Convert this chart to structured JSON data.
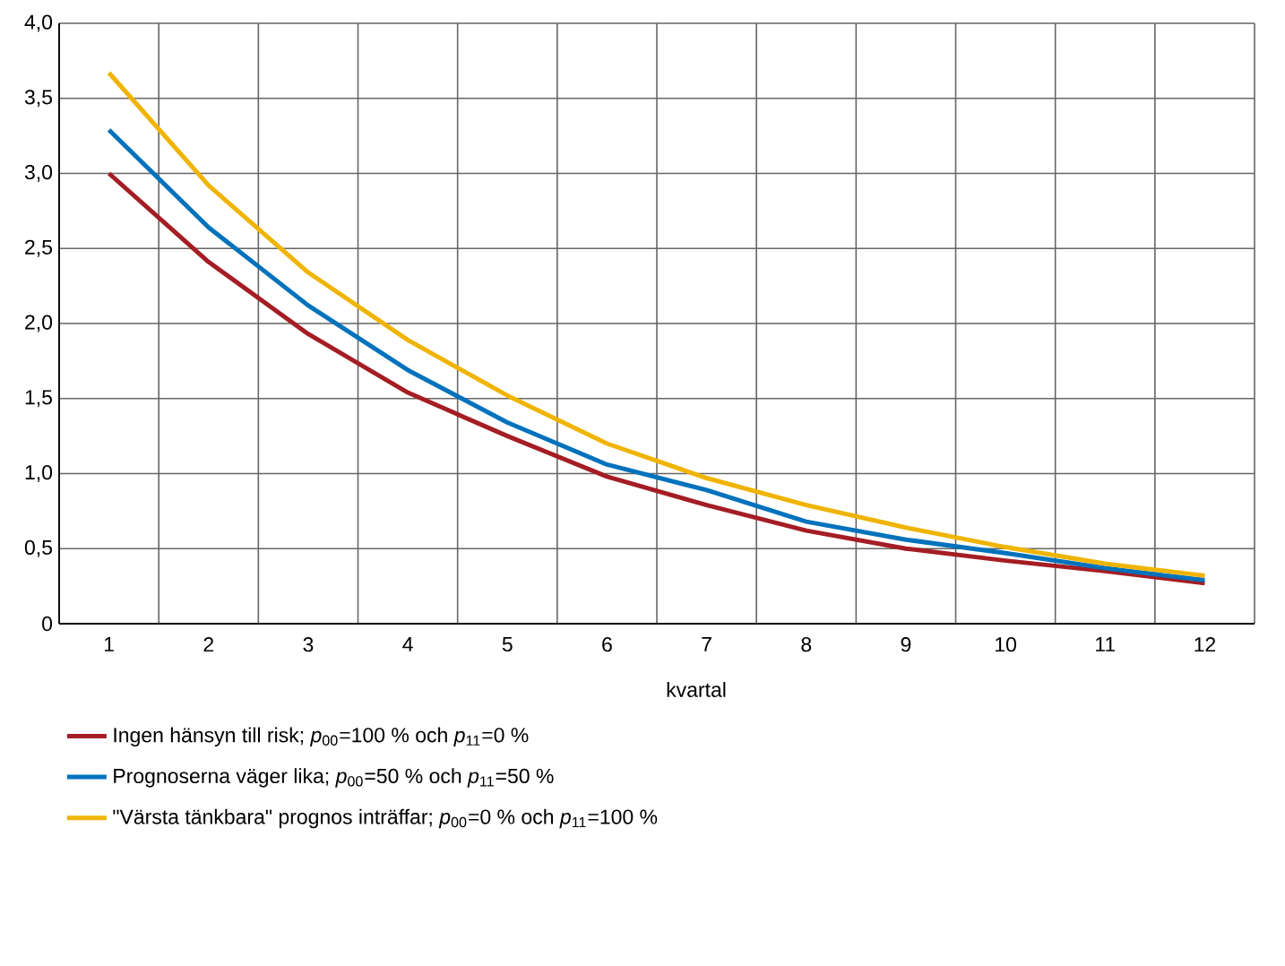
{
  "chart_data": {
    "type": "line",
    "xlabel": "kvartal",
    "categories": [
      "1",
      "2",
      "3",
      "4",
      "5",
      "6",
      "7",
      "8",
      "9",
      "10",
      "11",
      "12"
    ],
    "ylim": [
      0,
      4
    ],
    "yticks": [
      0,
      {
        "value": 0.5,
        "label": "0,5"
      },
      {
        "value": 1,
        "label": "1,0"
      },
      {
        "value": 1.5,
        "label": "1,5"
      },
      {
        "value": 2,
        "label": "2,0"
      },
      {
        "value": 2.5,
        "label": "2,5"
      },
      {
        "value": 3,
        "label": "3,0"
      },
      {
        "value": 3.5,
        "label": "3,5"
      },
      {
        "value": 4,
        "label": "4,0"
      }
    ],
    "grid": true,
    "legend": "bottom",
    "line_style": "solid",
    "series": [
      {
        "name": "Ingen hänsyn till risk; *p*$_{00}$=100 % och *p*$_{11}$=0 %",
        "color": "#a51d24",
        "values": [
          3.0,
          2.41,
          1.93,
          1.54,
          1.25,
          0.98,
          0.79,
          0.62,
          0.5,
          0.42,
          0.35,
          0.27
        ]
      },
      {
        "name": "Prognoserna väger lika; *p*$_{00}$=50 % och *p*$_{11}$=50 %",
        "color": "#0072bc",
        "values": [
          3.29,
          2.64,
          2.12,
          1.69,
          1.34,
          1.06,
          0.89,
          0.68,
          0.56,
          0.47,
          0.37,
          0.29
        ]
      },
      {
        "name": "\"Värsta tänkbara\" prognos inträffar; *p*$_{00}$=0 % och *p*$_{11}$=100 %",
        "color": "#f0b400",
        "values": [
          3.67,
          2.92,
          2.34,
          1.89,
          1.52,
          1.2,
          0.97,
          0.79,
          0.64,
          0.51,
          0.4,
          0.32
        ]
      }
    ]
  }
}
